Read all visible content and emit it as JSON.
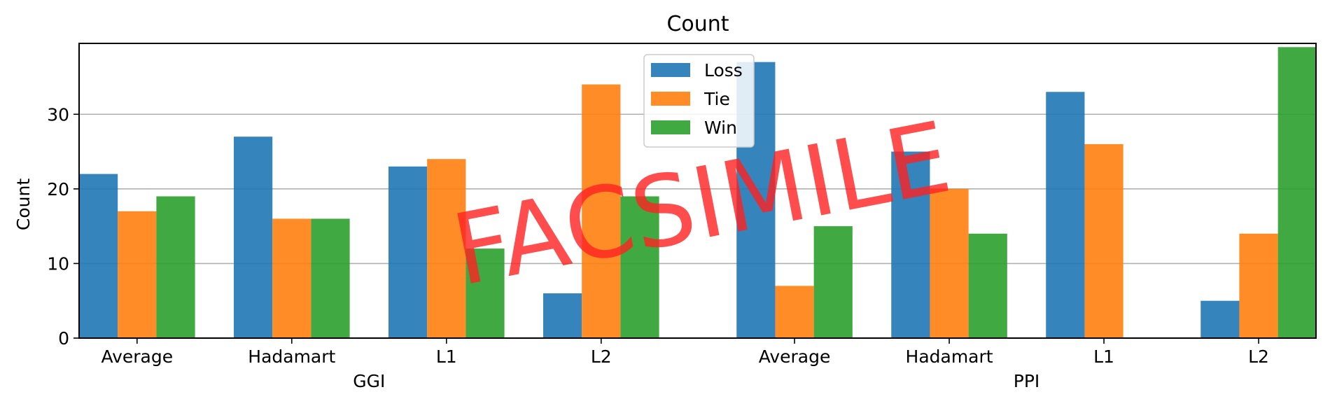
{
  "chart_data": {
    "type": "bar",
    "title": "Count",
    "ylabel": "Count",
    "xlabel": "",
    "ylim": [
      0,
      39.5
    ],
    "yticks": [
      0,
      10,
      20,
      30
    ],
    "grid": "horizontal",
    "legend_position": "top-center",
    "groups": [
      {
        "name": "GGI",
        "categories": [
          "Average",
          "Hadamart",
          "L1",
          "L2"
        ]
      },
      {
        "name": "PPI",
        "categories": [
          "Average",
          "Hadamart",
          "L1",
          "L2"
        ]
      }
    ],
    "series": [
      {
        "name": "Loss",
        "color": "#1f77b4",
        "values": [
          22,
          27,
          23,
          6,
          37,
          25,
          33,
          5
        ]
      },
      {
        "name": "Tie",
        "color": "#ff7f0e",
        "values": [
          17,
          16,
          24,
          34,
          7,
          20,
          26,
          14
        ]
      },
      {
        "name": "Win",
        "color": "#2ca02c",
        "values": [
          19,
          16,
          12,
          19,
          15,
          14,
          0,
          39
        ]
      }
    ]
  },
  "watermark": {
    "text": "FACSIMILE",
    "color": "#ff2020"
  }
}
